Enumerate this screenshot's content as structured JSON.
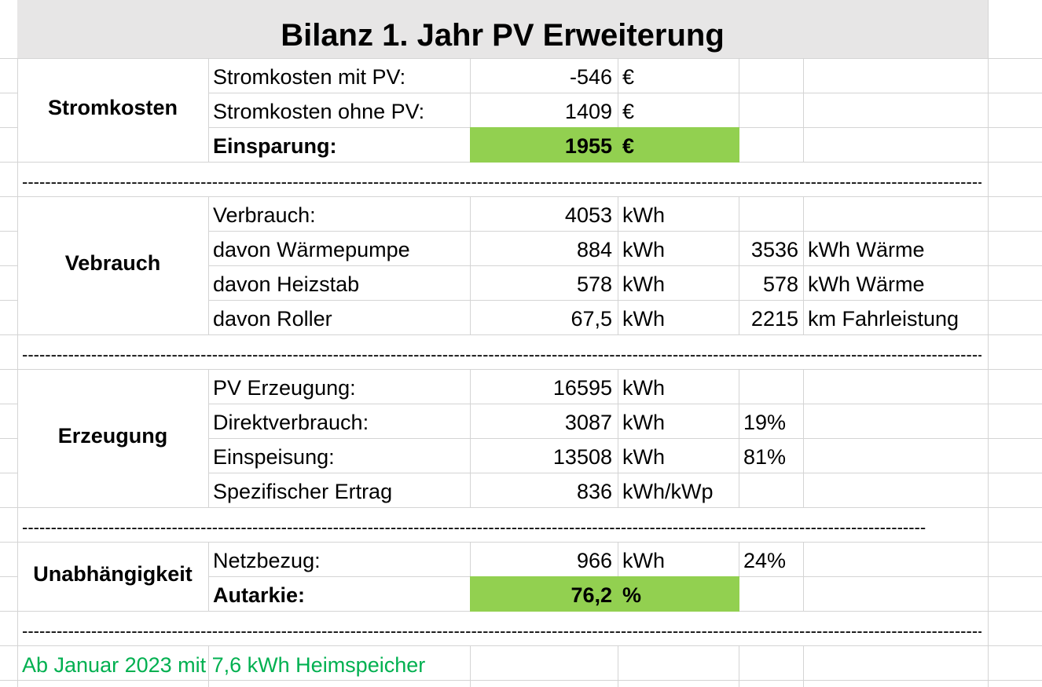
{
  "title": "Bilanz 1. Jahr PV Erweiterung",
  "sections": {
    "stromkosten": {
      "label": "Stromkosten",
      "rows": [
        {
          "label": "Stromkosten mit PV:",
          "value": "-546",
          "unit": "€"
        },
        {
          "label": "Stromkosten ohne PV:",
          "value": "1409",
          "unit": "€"
        },
        {
          "label": "Einsparung:",
          "value": "1955",
          "unit": "€"
        }
      ]
    },
    "verbrauch": {
      "label": "Vebrauch",
      "rows": [
        {
          "label": "Verbrauch:",
          "value": "4053",
          "unit": "kWh",
          "extra_value": "",
          "extra_unit": ""
        },
        {
          "label": "davon Wärmepumpe",
          "value": "884",
          "unit": "kWh",
          "extra_value": "3536",
          "extra_unit": "kWh Wärme"
        },
        {
          "label": "davon Heizstab",
          "value": "578",
          "unit": "kWh",
          "extra_value": "578",
          "extra_unit": "kWh Wärme"
        },
        {
          "label": "davon Roller",
          "value": "67,5",
          "unit": "kWh",
          "extra_value": "2215",
          "extra_unit": "km Fahrleistung"
        }
      ]
    },
    "erzeugung": {
      "label": "Erzeugung",
      "rows": [
        {
          "label": "PV Erzeugung:",
          "value": "16595",
          "unit": "kWh",
          "extra": ""
        },
        {
          "label": "Direktverbrauch:",
          "value": "3087",
          "unit": "kWh",
          "extra": "19%"
        },
        {
          "label": "Einspeisung:",
          "value": "13508",
          "unit": "kWh",
          "extra": "81%"
        },
        {
          "label": "Spezifischer Ertrag",
          "value": "836",
          "unit": "kWh/kWp",
          "extra": ""
        }
      ]
    },
    "unabhaengigkeit": {
      "label": "Unabhängigkeit",
      "rows": [
        {
          "label": "Netzbezug:",
          "value": "966",
          "unit": "kWh",
          "extra": "24%"
        },
        {
          "label": "Autarkie:",
          "value": "76,2",
          "unit": "%",
          "extra": ""
        }
      ]
    }
  },
  "separator_long": "----------------------------------------------------------------------------------------------------------------------------------------------------------------------------",
  "separator_short": "--------------------------------------------------------------------------------------------------------------------------------------------------------------------",
  "note": "Ab Januar 2023 mit 7,6 kWh  Heimspeicher",
  "colors": {
    "highlight": "#92d050",
    "header_bg": "#e7e6e6",
    "note_text": "#00b050",
    "gridline": "#d4d4d4"
  }
}
